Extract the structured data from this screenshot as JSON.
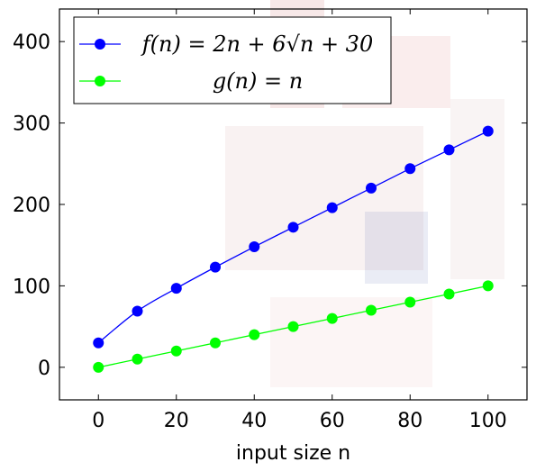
{
  "chart_data": {
    "type": "line",
    "xlabel": "input size n",
    "ylabel": "",
    "title": "",
    "xlim": [
      -10,
      110
    ],
    "ylim": [
      -40,
      440
    ],
    "x_ticks": [
      0,
      20,
      40,
      60,
      80,
      100
    ],
    "y_ticks": [
      0,
      100,
      200,
      300,
      400
    ],
    "x_tick_labels": [
      "0",
      "20",
      "40",
      "60",
      "80",
      "100"
    ],
    "y_tick_labels": [
      "0",
      "100",
      "200",
      "300",
      "400"
    ],
    "x": [
      0,
      10,
      20,
      30,
      40,
      50,
      60,
      70,
      80,
      90,
      100
    ],
    "grid": false,
    "legend_position": "top-left",
    "series": [
      {
        "name": "f(n) = 2n + 6√n + 30",
        "color": "#0000ff",
        "values": [
          30,
          69,
          97,
          123,
          148,
          172,
          196,
          220,
          244,
          267,
          290
        ]
      },
      {
        "name": "g(n) = n",
        "color": "#00ff00",
        "values": [
          0,
          10,
          20,
          30,
          40,
          50,
          60,
          70,
          80,
          90,
          100
        ]
      }
    ]
  }
}
